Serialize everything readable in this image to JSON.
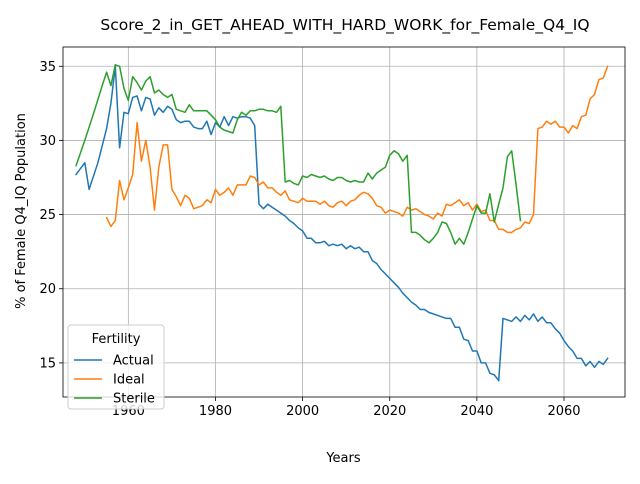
{
  "chart_data": {
    "type": "line",
    "title": "Score_2_in_GET_AHEAD_WITH_HARD_WORK_for_Female_Q4_IQ",
    "xlabel": "Years",
    "ylabel": "% of Female Q4_IQ Population",
    "xlim": [
      1945,
      2074
    ],
    "ylim": [
      12.7,
      36.3
    ],
    "xticks": [
      1960,
      1980,
      2000,
      2020,
      2040,
      2060
    ],
    "yticks": [
      15,
      20,
      25,
      30,
      35
    ],
    "grid": true,
    "legend": {
      "title": "Fertility",
      "placement": "lower-left"
    },
    "series": [
      {
        "name": "Actual",
        "color": "#1f77b4",
        "x": [
          1948,
          1950,
          1951,
          1953,
          1955,
          1956,
          1957,
          1958,
          1959,
          1960,
          1961,
          1962,
          1963,
          1964,
          1965,
          1966,
          1967,
          1968,
          1969,
          1970,
          1971,
          1972,
          1973,
          1974,
          1975,
          1976,
          1977,
          1978,
          1979,
          1980,
          1981,
          1982,
          1983,
          1984,
          1985,
          1986,
          1987,
          1988,
          1989,
          1990,
          1991,
          1992,
          1993,
          1994,
          1995,
          1996,
          1997,
          1998,
          1999,
          2000,
          2001,
          2002,
          2003,
          2004,
          2005,
          2006,
          2007,
          2008,
          2009,
          2010,
          2011,
          2012,
          2013,
          2014,
          2015,
          2016,
          2017,
          2018,
          2019,
          2020,
          2021,
          2022,
          2023,
          2024,
          2025,
          2026,
          2027,
          2028,
          2029,
          2030,
          2031,
          2032,
          2033,
          2034,
          2035,
          2036,
          2037,
          2038,
          2039,
          2040,
          2041,
          2042,
          2043,
          2044,
          2045,
          2046,
          2047,
          2048,
          2049,
          2050,
          2051,
          2052,
          2053,
          2054,
          2055,
          2056,
          2057,
          2058,
          2059,
          2060,
          2061,
          2062,
          2063,
          2064,
          2065,
          2066,
          2067,
          2068,
          2069,
          2070
        ],
        "values": [
          27.7,
          28.5,
          26.7,
          28.5,
          30.8,
          32.5,
          35.0,
          29.5,
          31.9,
          31.8,
          32.9,
          33.0,
          32.0,
          32.9,
          32.8,
          31.7,
          32.2,
          31.9,
          32.3,
          32.1,
          31.4,
          31.2,
          31.3,
          31.3,
          30.9,
          30.8,
          30.8,
          31.3,
          30.4,
          31.2,
          30.9,
          31.6,
          31.0,
          31.6,
          31.5,
          31.6,
          31.6,
          31.5,
          31.0,
          25.7,
          25.4,
          25.7,
          25.5,
          25.3,
          25.1,
          24.9,
          24.6,
          24.4,
          24.1,
          23.9,
          23.4,
          23.4,
          23.1,
          23.1,
          23.2,
          22.9,
          23.0,
          22.9,
          23.0,
          22.7,
          22.9,
          22.7,
          22.8,
          22.5,
          22.5,
          21.9,
          21.7,
          21.3,
          21.0,
          20.7,
          20.4,
          20.1,
          19.7,
          19.4,
          19.1,
          18.9,
          18.6,
          18.6,
          18.4,
          18.3,
          18.2,
          18.1,
          18.0,
          18.0,
          17.4,
          17.4,
          16.6,
          16.5,
          15.8,
          15.8,
          15.0,
          15.0,
          14.3,
          14.2,
          13.8,
          18.0,
          17.9,
          17.8,
          18.1,
          17.8,
          18.2,
          17.9,
          18.3,
          17.8,
          18.1,
          17.7,
          17.7,
          17.3,
          17.0,
          16.5,
          16.1,
          15.8,
          15.3,
          15.3,
          14.8,
          15.1,
          14.7,
          15.1,
          14.9,
          15.3
        ]
      },
      {
        "name": "Ideal",
        "color": "#ff7f0e",
        "x": [
          1955,
          1956,
          1957,
          1958,
          1959,
          1960,
          1961,
          1962,
          1963,
          1964,
          1965,
          1966,
          1967,
          1968,
          1969,
          1970,
          1971,
          1972,
          1973,
          1974,
          1975,
          1976,
          1977,
          1978,
          1979,
          1980,
          1981,
          1982,
          1983,
          1984,
          1985,
          1986,
          1987,
          1988,
          1989,
          1990,
          1991,
          1992,
          1993,
          1994,
          1995,
          1996,
          1997,
          1998,
          1999,
          2000,
          2001,
          2002,
          2003,
          2004,
          2005,
          2006,
          2007,
          2008,
          2009,
          2010,
          2011,
          2012,
          2013,
          2014,
          2015,
          2016,
          2017,
          2018,
          2019,
          2020,
          2021,
          2022,
          2023,
          2024,
          2025,
          2026,
          2027,
          2028,
          2029,
          2030,
          2031,
          2032,
          2033,
          2034,
          2035,
          2036,
          2037,
          2038,
          2039,
          2040,
          2041,
          2042,
          2043,
          2044,
          2045,
          2046,
          2047,
          2048,
          2049,
          2050,
          2051,
          2052,
          2053,
          2054,
          2055,
          2056,
          2057,
          2058,
          2059,
          2060,
          2061,
          2062,
          2063,
          2064,
          2065,
          2066,
          2067,
          2068,
          2069,
          2070
        ],
        "values": [
          24.8,
          24.2,
          24.6,
          27.3,
          26.0,
          26.8,
          27.7,
          31.2,
          28.6,
          30.0,
          28.2,
          25.3,
          28.2,
          29.7,
          29.7,
          26.7,
          26.2,
          25.6,
          26.3,
          26.1,
          25.4,
          25.5,
          25.6,
          26.0,
          25.8,
          26.7,
          26.3,
          26.5,
          26.8,
          26.3,
          27.0,
          27.0,
          27.0,
          27.6,
          27.5,
          27.0,
          27.2,
          26.8,
          26.8,
          26.5,
          26.3,
          26.6,
          26.0,
          25.9,
          25.8,
          26.1,
          25.9,
          25.9,
          25.9,
          25.7,
          25.9,
          25.6,
          25.5,
          25.8,
          25.9,
          25.6,
          25.9,
          26.0,
          26.3,
          26.5,
          26.4,
          26.1,
          25.6,
          25.5,
          25.1,
          25.3,
          25.2,
          25.1,
          24.9,
          25.5,
          25.3,
          25.4,
          25.2,
          25.0,
          24.9,
          24.7,
          25.1,
          24.9,
          25.7,
          25.6,
          25.8,
          26.0,
          25.6,
          25.8,
          25.3,
          25.7,
          25.2,
          25.3,
          24.6,
          24.6,
          24.0,
          24.0,
          23.8,
          23.8,
          24.0,
          24.1,
          24.5,
          24.4,
          25.0,
          30.8,
          30.9,
          31.3,
          31.1,
          31.3,
          30.9,
          30.9,
          30.5,
          31.0,
          30.8,
          31.6,
          31.7,
          32.8,
          33.1,
          34.1,
          34.2,
          35.0
        ]
      },
      {
        "name": "Sterile",
        "color": "#2ca02c",
        "x": [
          1948,
          1950,
          1952,
          1954,
          1955,
          1956,
          1957,
          1958,
          1959,
          1960,
          1961,
          1962,
          1963,
          1964,
          1965,
          1966,
          1967,
          1968,
          1969,
          1970,
          1971,
          1972,
          1973,
          1974,
          1975,
          1976,
          1977,
          1978,
          1979,
          1980,
          1981,
          1982,
          1983,
          1984,
          1985,
          1986,
          1987,
          1988,
          1989,
          1990,
          1991,
          1992,
          1993,
          1994,
          1995,
          1996,
          1997,
          1998,
          1999,
          2000,
          2001,
          2002,
          2003,
          2004,
          2005,
          2006,
          2007,
          2008,
          2009,
          2010,
          2011,
          2012,
          2013,
          2014,
          2015,
          2016,
          2017,
          2018,
          2019,
          2020,
          2021,
          2022,
          2023,
          2024,
          2025,
          2026,
          2027,
          2028,
          2029,
          2030,
          2031,
          2032,
          2033,
          2034,
          2035,
          2036,
          2037,
          2038,
          2039,
          2040,
          2041,
          2042,
          2043,
          2044,
          2045,
          2046,
          2047,
          2048,
          2049,
          2050
        ],
        "values": [
          28.3,
          30.0,
          31.8,
          33.7,
          34.6,
          33.7,
          35.1,
          35.0,
          33.5,
          32.7,
          34.3,
          33.9,
          33.4,
          34.0,
          34.3,
          33.2,
          33.4,
          33.1,
          32.9,
          33.1,
          32.1,
          32.0,
          31.9,
          32.4,
          32.0,
          32.0,
          32.0,
          32.0,
          31.7,
          31.4,
          30.9,
          30.7,
          30.6,
          30.5,
          31.4,
          31.9,
          31.7,
          32.0,
          32.0,
          32.1,
          32.1,
          32.0,
          32.0,
          31.9,
          32.3,
          27.2,
          27.3,
          27.1,
          27.0,
          27.6,
          27.5,
          27.7,
          27.6,
          27.5,
          27.6,
          27.4,
          27.3,
          27.5,
          27.5,
          27.3,
          27.2,
          27.3,
          27.2,
          27.2,
          27.8,
          27.4,
          27.8,
          28.0,
          28.2,
          29.0,
          29.3,
          29.1,
          28.6,
          29.0,
          23.8,
          23.8,
          23.6,
          23.3,
          23.1,
          23.4,
          23.8,
          24.5,
          24.4,
          23.8,
          23.0,
          23.4,
          23.0,
          23.8,
          24.7,
          25.6,
          25.1,
          25.1,
          26.4,
          24.5,
          25.7,
          26.8,
          28.9,
          29.3,
          27.0,
          24.6
        ]
      }
    ]
  }
}
